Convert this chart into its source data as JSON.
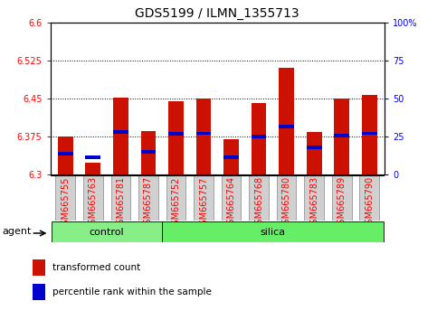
{
  "title": "GDS5199 / ILMN_1355713",
  "samples": [
    "GSM665755",
    "GSM665763",
    "GSM665781",
    "GSM665787",
    "GSM665752",
    "GSM665757",
    "GSM665764",
    "GSM665768",
    "GSM665780",
    "GSM665783",
    "GSM665789",
    "GSM665790"
  ],
  "red_values": [
    6.375,
    6.323,
    6.452,
    6.385,
    6.445,
    6.45,
    6.37,
    6.44,
    6.51,
    6.383,
    6.45,
    6.456
  ],
  "blue_values": [
    6.341,
    6.333,
    6.384,
    6.344,
    6.38,
    6.381,
    6.334,
    6.375,
    6.394,
    6.353,
    6.376,
    6.381
  ],
  "y_min": 6.3,
  "y_max": 6.6,
  "y_ticks": [
    6.3,
    6.375,
    6.45,
    6.525,
    6.6
  ],
  "right_ticks_pct": [
    0,
    25,
    50,
    75,
    100
  ],
  "right_tick_labels": [
    "0",
    "25",
    "50",
    "75",
    "100%"
  ],
  "n_control": 4,
  "bar_bottom": 6.3,
  "red_color": "#cc1100",
  "blue_color": "#0000cc",
  "control_color": "#88ee88",
  "silica_color": "#66ee66",
  "agent_label": "agent",
  "control_label": "control",
  "silica_label": "silica",
  "legend_red": "transformed count",
  "legend_blue": "percentile rank within the sample",
  "bar_width": 0.55,
  "tick_fontsize": 7,
  "title_fontsize": 10,
  "label_fontsize": 8,
  "legend_fontsize": 7.5
}
